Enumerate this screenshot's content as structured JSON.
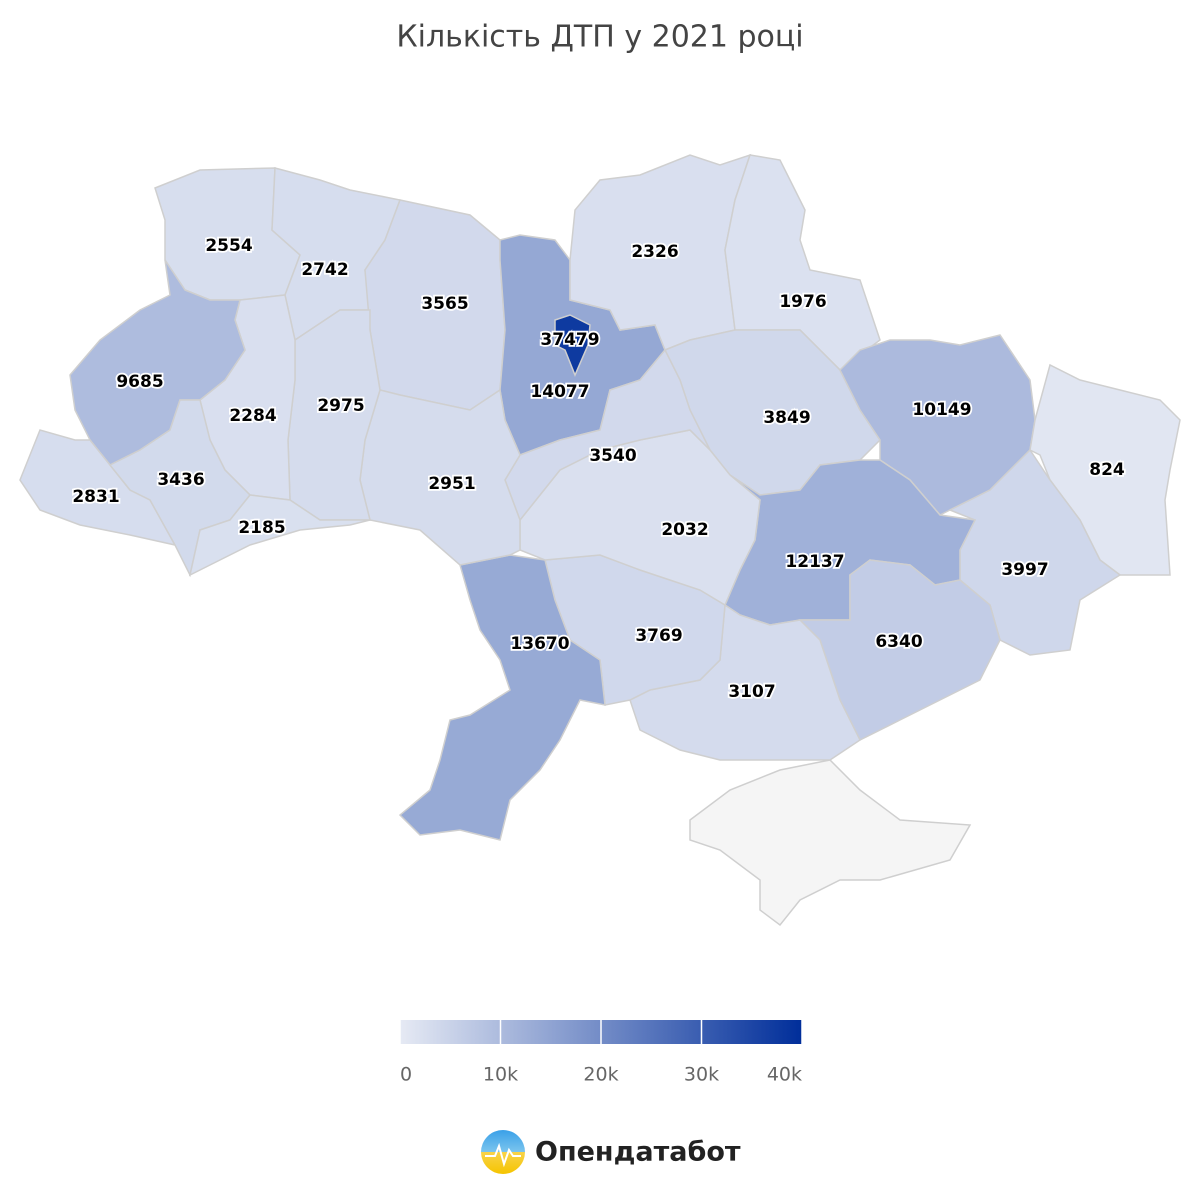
{
  "chart_data": {
    "type": "choropleth",
    "title": "Кількість ДТП у 2021 році",
    "values": [
      2554,
      2742,
      3565,
      14077,
      37479,
      2326,
      1976,
      3849,
      10149,
      824,
      3997,
      12137,
      6340,
      3107,
      3769,
      13670,
      2032,
      3540,
      2951,
      2975,
      2284,
      9685,
      2831,
      3436,
      2185
    ],
    "colors": [
      "#e6eaf4",
      "#002e9a"
    ],
    "clim": [
      0,
      40000
    ],
    "cticks": [
      0,
      {
        "value": 10000,
        "label": "10k"
      },
      {
        "value": 20000,
        "label": "20k"
      },
      {
        "value": 30000,
        "label": "30k"
      },
      {
        "value": 40000,
        "label": "40k"
      }
    ],
    "brand": "Опендатабот"
  }
}
